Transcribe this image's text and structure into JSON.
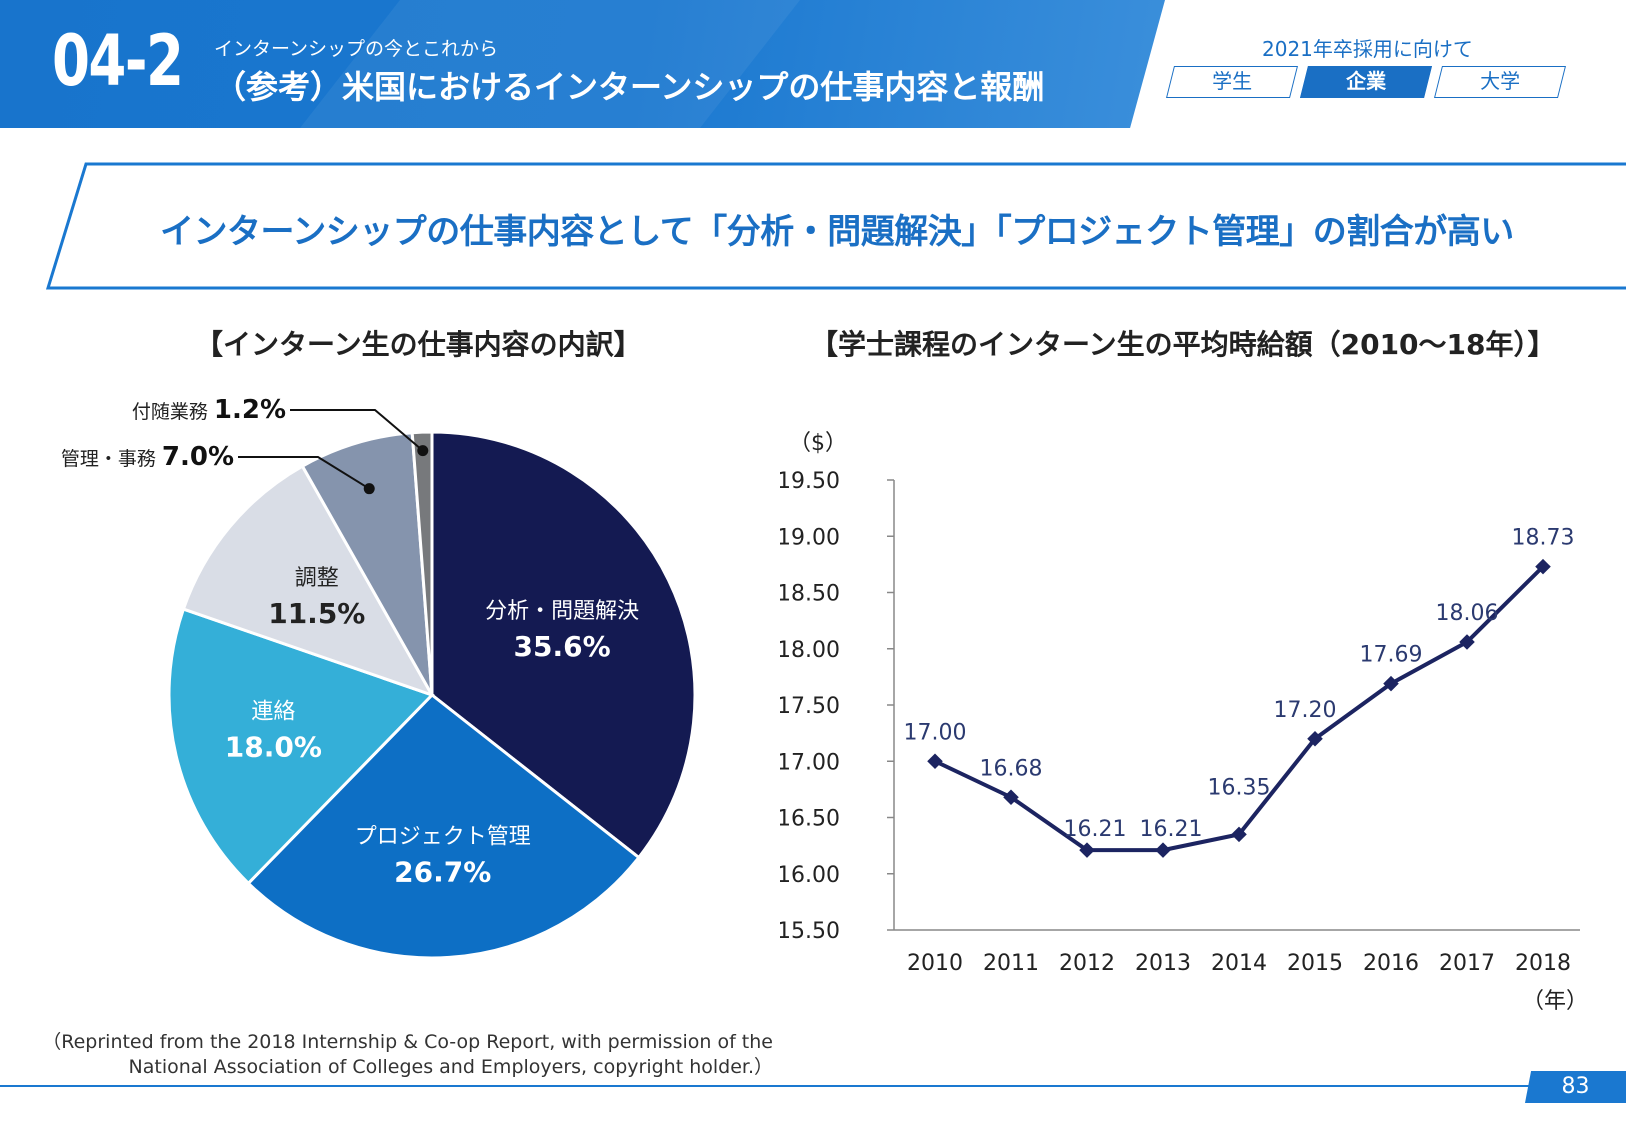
{
  "header": {
    "section_number": "04-2",
    "subtitle": "インターンシップの今とこれから",
    "title": "（参考）米国におけるインターンシップの仕事内容と報酬",
    "target_label": "2021年卒採用に向けて",
    "tabs": [
      {
        "label": "学生",
        "active": false
      },
      {
        "label": "企業",
        "active": true
      },
      {
        "label": "大学",
        "active": false
      }
    ]
  },
  "headline": "インターンシップの仕事内容として「分析・問題解決」「プロジェクト管理」の割合が高い",
  "colors": {
    "brand_blue": "#1a78d0",
    "navy": "#141a52",
    "mid_blue": "#0d6fc5",
    "light_blue": "#34afd8",
    "pale_gray": "#d9dde6",
    "slate": "#8594ad",
    "dark_gray": "#77797c"
  },
  "chart_data": [
    {
      "type": "pie",
      "title": "【インターン生の仕事内容の内訳】",
      "slices": [
        {
          "name": "分析・問題解決",
          "value": 35.6,
          "label": "35.6%",
          "color": "#141a52"
        },
        {
          "name": "プロジェクト管理",
          "value": 26.7,
          "label": "26.7%",
          "color": "#0d6fc5"
        },
        {
          "name": "連絡",
          "value": 18.0,
          "label": "18.0%",
          "color": "#34afd8"
        },
        {
          "name": "調整",
          "value": 11.5,
          "label": "11.5%",
          "color": "#d9dde6"
        },
        {
          "name": "管理・事務",
          "value": 7.0,
          "label": "7.0%",
          "color": "#8594ad"
        },
        {
          "name": "付随業務",
          "value": 1.2,
          "label": "1.2%",
          "color": "#77797c"
        }
      ]
    },
    {
      "type": "line",
      "title": "【学士課程のインターン生の平均時給額（2010～18年）】",
      "ylabel": "（$）",
      "xlabel": "（年）",
      "ylim": [
        15.5,
        19.5
      ],
      "yticks": [
        "15.50",
        "16.00",
        "16.50",
        "17.00",
        "17.50",
        "18.00",
        "18.50",
        "19.00",
        "19.50"
      ],
      "x": [
        "2010",
        "2011",
        "2012",
        "2013",
        "2014",
        "2015",
        "2016",
        "2017",
        "2018"
      ],
      "values": [
        17.0,
        16.68,
        16.21,
        16.21,
        16.35,
        17.2,
        17.69,
        18.06,
        18.73
      ],
      "labels": [
        "17.00",
        "16.68",
        "16.21",
        "16.21",
        "16.35",
        "17.20",
        "17.69",
        "18.06",
        "18.73"
      ],
      "color": "#1c2461"
    }
  ],
  "source_note": "（Reprinted from the 2018 Internship & Co-op Report, with permission of the National Association of Colleges and Employers, copyright holder.）",
  "page_number": "83"
}
